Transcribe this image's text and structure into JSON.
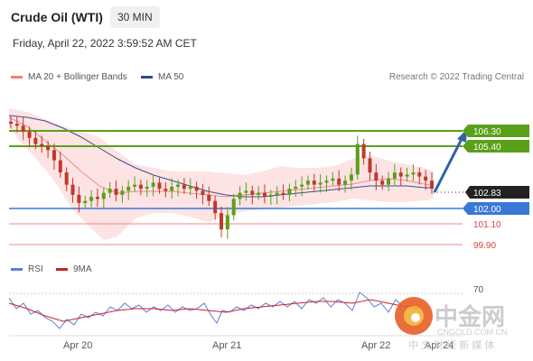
{
  "header": {
    "title": "Crude Oil (WTI)",
    "timeframe": "30 MIN",
    "datetime": "Friday, April 22, 2022 3:59:52 AM CET"
  },
  "legend": {
    "ma20_label": "MA 20 + Bollinger Bands",
    "ma50_label": "MA 50",
    "rsi_label": "RSI",
    "rsi_ma_label": "9MA",
    "credit": "Research © 2022 Trading Central"
  },
  "levels": {
    "r2": "106.30",
    "r1": "105.40",
    "last": "102.83",
    "pivot": "102.00",
    "s1": "101.10",
    "s2": "99.90"
  },
  "rsi_axis": {
    "level": "70"
  },
  "x_axis": {
    "labels": [
      "Apr 20",
      "Apr 21",
      "Apr 22",
      "Apr 24"
    ]
  },
  "watermark": {
    "brand": "中金网",
    "site": "CNGOLD.COM.CN",
    "tagline": "中 文 财 经 新 媒 体"
  },
  "colors": {
    "resistance": "#5aa01a",
    "pivot": "#3a78d8",
    "support": "#e05a5a",
    "bull_candle": "#5aa01a",
    "bear_candle": "#c0392b",
    "arrow": "#2e63a8",
    "band_fill": "#fde3e3",
    "ma50": "#3c4f8a"
  },
  "chart_data": {
    "type": "candlestick",
    "title": "Crude Oil (WTI)",
    "timeframe": "30 MIN",
    "x_labels": [
      "Apr 20",
      "Apr 21",
      "Apr 22",
      "Apr 24"
    ],
    "y_levels": [
      {
        "name": "resistance 2",
        "value": 106.3
      },
      {
        "name": "resistance 1",
        "value": 105.4
      },
      {
        "name": "last",
        "value": 102.83
      },
      {
        "name": "pivot",
        "value": 102.0
      },
      {
        "name": "support 1",
        "value": 101.1
      },
      {
        "name": "support 2",
        "value": 99.9
      }
    ],
    "ylim": [
      99.3,
      107.2
    ],
    "close_path": [
      106.0,
      105.9,
      105.6,
      105.3,
      105.0,
      104.9,
      104.7,
      104.2,
      103.6,
      103.0,
      102.5,
      102.1,
      102.2,
      102.4,
      102.3,
      102.6,
      102.8,
      102.5,
      102.7,
      102.9,
      103.0,
      102.8,
      102.9,
      103.1,
      102.8,
      102.7,
      102.9,
      103.0,
      102.8,
      102.9,
      102.7,
      102.5,
      102.2,
      101.6,
      100.8,
      101.5,
      102.3,
      102.6,
      102.7,
      102.5,
      102.6,
      102.4,
      102.5,
      102.6,
      102.5,
      102.8,
      102.9,
      103.0,
      103.2,
      103.0,
      103.1,
      103.2,
      103.3,
      103.0,
      103.2,
      103.5,
      105.0,
      104.3,
      103.6,
      103.2,
      103.0,
      103.3,
      103.6,
      103.4,
      103.5,
      103.6,
      103.4,
      103.2,
      102.8
    ],
    "forecast_target": 106.3,
    "rsi": {
      "levels": [
        70
      ],
      "series": [
        {
          "name": "RSI"
        },
        {
          "name": "9MA"
        }
      ]
    }
  }
}
